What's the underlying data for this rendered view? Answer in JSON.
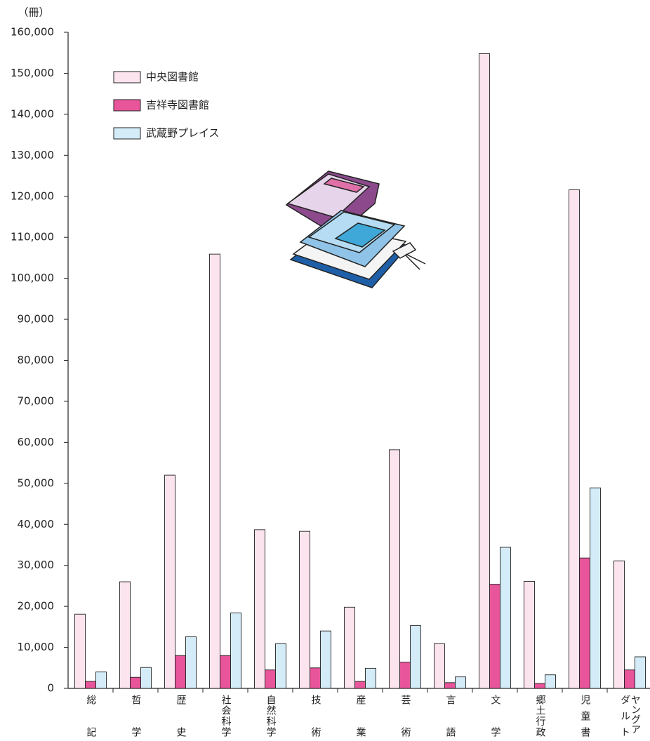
{
  "chart_data": {
    "type": "bar",
    "ylabel": "（冊）",
    "categories": [
      "総記",
      "哲学",
      "歴史",
      "社会科学",
      "自然科学",
      "技術",
      "産業",
      "芸術",
      "言語",
      "文学",
      "郷土行政",
      "児童書",
      "ヤングアダルト"
    ],
    "series": [
      {
        "name": "中央図書館",
        "color": "#fce4ee",
        "values": [
          18100,
          26000,
          52000,
          105900,
          38700,
          38300,
          19800,
          58200,
          10900,
          154800,
          26100,
          121600,
          31100
        ]
      },
      {
        "name": "吉祥寺図書館",
        "color": "#e8559a",
        "values": [
          1700,
          2700,
          8000,
          8000,
          4500,
          5000,
          1700,
          6400,
          1400,
          25400,
          1200,
          31800,
          4500
        ]
      },
      {
        "name": "武蔵野プレイス",
        "color": "#d4ecf8",
        "values": [
          4000,
          5100,
          12600,
          18400,
          10900,
          14000,
          4900,
          15300,
          2800,
          34400,
          3300,
          48900,
          7700
        ]
      }
    ],
    "ylim": [
      0,
      160000
    ],
    "yticks": [
      0,
      {
        "value": 10000,
        "label": "10,000"
      },
      {
        "value": 20000,
        "label": "20,000"
      },
      {
        "value": 30000,
        "label": "30,000"
      },
      {
        "value": 40000,
        "label": "40,000"
      },
      {
        "value": 50000,
        "label": "50,000"
      },
      {
        "value": 60000,
        "label": "60,000"
      },
      {
        "value": 70000,
        "label": "70,000"
      },
      {
        "value": 80000,
        "label": "80,000"
      },
      {
        "value": 90000,
        "label": "90,000"
      },
      {
        "value": 100000,
        "label": "100,000"
      },
      {
        "value": 110000,
        "label": "110,000"
      },
      {
        "value": 120000,
        "label": "120,000"
      },
      {
        "value": 130000,
        "label": "130,000"
      },
      {
        "value": 140000,
        "label": "140,000"
      },
      {
        "value": 150000,
        "label": "150,000"
      },
      {
        "value": 160000,
        "label": "160,000"
      }
    ],
    "grid": false
  }
}
